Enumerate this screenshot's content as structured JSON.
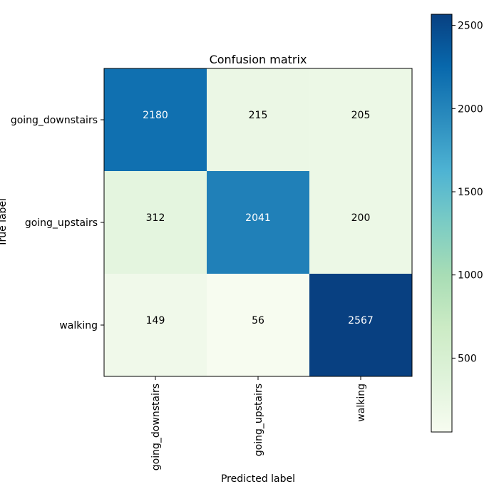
{
  "chart_data": {
    "type": "heatmap",
    "title": "Confusion matrix",
    "xlabel": "Predicted label",
    "ylabel": "True label",
    "x_categories": [
      "going_downstairs",
      "going_upstairs",
      "walking"
    ],
    "y_categories": [
      "going_downstairs",
      "going_upstairs",
      "walking"
    ],
    "values": [
      [
        2180,
        215,
        205
      ],
      [
        312,
        2041,
        200
      ],
      [
        149,
        56,
        2567
      ]
    ],
    "colormap": "GnBu",
    "colorbar": {
      "range": [
        56,
        2567
      ],
      "ticks": [
        500,
        1000,
        1500,
        2000,
        2500
      ]
    }
  }
}
